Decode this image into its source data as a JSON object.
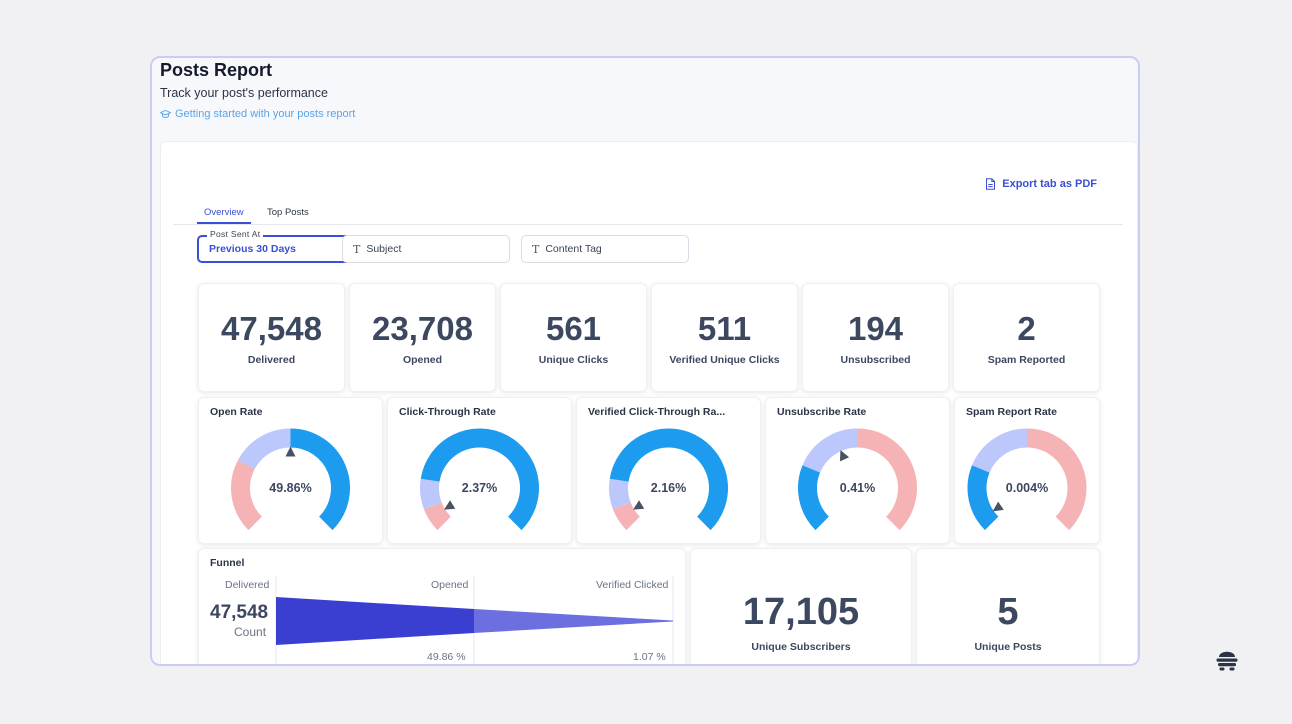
{
  "header": {
    "title": "Posts Report",
    "subtitle": "Track your post's performance",
    "guide_link": "Getting started with your posts report"
  },
  "toolbar": {
    "export_label": "Export tab as PDF"
  },
  "tabs": [
    {
      "label": "Overview",
      "active": true
    },
    {
      "label": "Top Posts",
      "active": false
    }
  ],
  "filters": {
    "post_sent_at": {
      "legend": "Post Sent At",
      "value": "Previous 30 Days",
      "clear": "✕"
    },
    "subject": {
      "label": "Subject"
    },
    "content_tag": {
      "label": "Content Tag"
    }
  },
  "stats": [
    {
      "value": "47,548",
      "label": "Delivered"
    },
    {
      "value": "23,708",
      "label": "Opened"
    },
    {
      "value": "561",
      "label": "Unique Clicks"
    },
    {
      "value": "511",
      "label": "Verified Unique Clicks"
    },
    {
      "value": "194",
      "label": "Unsubscribed"
    },
    {
      "value": "2",
      "label": "Spam Reported"
    }
  ],
  "gauges": [
    {
      "title": "Open Rate",
      "value": "49.86%",
      "pointer": 0.5,
      "segments": [
        {
          "from": 0,
          "to": 0.27,
          "color": "#f6b3b6"
        },
        {
          "from": 0.27,
          "to": 0.5,
          "color": "#bcc7fb"
        },
        {
          "from": 0.5,
          "to": 1,
          "color": "#1c9bef"
        }
      ]
    },
    {
      "title": "Click-Through Rate",
      "value": "2.37%",
      "pointer": 0.05,
      "segments": [
        {
          "from": 0,
          "to": 0.09,
          "color": "#f6b3b6"
        },
        {
          "from": 0.09,
          "to": 0.2,
          "color": "#bcc7fb"
        },
        {
          "from": 0.2,
          "to": 1,
          "color": "#1c9bef"
        }
      ]
    },
    {
      "title": "Verified Click-Through Ra...",
      "value": "2.16%",
      "pointer": 0.05,
      "segments": [
        {
          "from": 0,
          "to": 0.09,
          "color": "#f6b3b6"
        },
        {
          "from": 0.09,
          "to": 0.2,
          "color": "#bcc7fb"
        },
        {
          "from": 0.2,
          "to": 1,
          "color": "#1c9bef"
        }
      ]
    },
    {
      "title": "Unsubscribe Rate",
      "value": "0.41%",
      "pointer": 0.41,
      "segments": [
        {
          "from": 0,
          "to": 0.25,
          "color": "#1c9bef"
        },
        {
          "from": 0.25,
          "to": 0.5,
          "color": "#bcc7fb"
        },
        {
          "from": 0.5,
          "to": 1,
          "color": "#f6b3b6"
        }
      ]
    },
    {
      "title": "Spam Report Rate",
      "value": "0.004%",
      "pointer": 0.04,
      "segments": [
        {
          "from": 0,
          "to": 0.25,
          "color": "#1c9bef"
        },
        {
          "from": 0.25,
          "to": 0.5,
          "color": "#bcc7fb"
        },
        {
          "from": 0.5,
          "to": 1,
          "color": "#f6b3b6"
        }
      ]
    }
  ],
  "funnel": {
    "title": "Funnel",
    "count": "47,548",
    "count_label": "Count",
    "stages": [
      {
        "label": "Delivered"
      },
      {
        "label": "Opened",
        "percent": "49.86 %",
        "fraction": 0.4986
      },
      {
        "label": "Verified Clicked",
        "percent": "1.07 %",
        "fraction": 0.0107
      }
    ]
  },
  "summary": [
    {
      "value": "17,105",
      "label": "Unique Subscribers"
    },
    {
      "value": "5",
      "label": "Unique Posts"
    }
  ],
  "icons": {
    "guide": "graduation-cap-icon",
    "export": "file-icon",
    "filter_text": "text-type-icon",
    "logo": "beehive-logo-icon"
  },
  "colors": {
    "accent": "#3b4fd6",
    "link": "#5aa4e6",
    "gauge_blue": "#1c9bef",
    "gauge_lavender": "#bcc7fb",
    "gauge_pink": "#f6b3b6",
    "funnel_dark": "#3a3fd1",
    "funnel_light": "#6b6fdf"
  }
}
